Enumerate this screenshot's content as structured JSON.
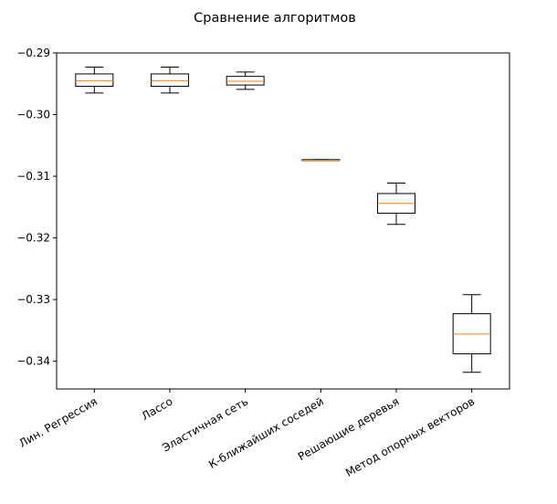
{
  "chart_data": {
    "type": "boxplot",
    "title": "Сравнение алгоритмов",
    "xlabel": "",
    "ylabel": "",
    "ylim": [
      -0.3445,
      -0.29
    ],
    "yticks": [
      -0.29,
      -0.3,
      -0.31,
      -0.32,
      -0.33,
      -0.34
    ],
    "ytick_labels": [
      "−0.29",
      "−0.30",
      "−0.31",
      "−0.32",
      "−0.33",
      "−0.34"
    ],
    "grid": false,
    "colors": {
      "box": "#000000",
      "median": "#ff7f0e"
    },
    "categories": [
      "Лин. Регрессия",
      "Лассо",
      "Эластичная сеть",
      "К-ближайших соседей",
      "Решающие деревья",
      "Метод опорных векторов"
    ],
    "boxes": [
      {
        "whisker_low": -0.2965,
        "q1": -0.2954,
        "median": -0.2945,
        "q3": -0.2934,
        "whisker_high": -0.2923
      },
      {
        "whisker_low": -0.2965,
        "q1": -0.2954,
        "median": -0.2945,
        "q3": -0.2934,
        "whisker_high": -0.2923
      },
      {
        "whisker_low": -0.2959,
        "q1": -0.2952,
        "median": -0.2946,
        "q3": -0.2938,
        "whisker_high": -0.2931
      },
      {
        "whisker_low": -0.3074,
        "q1": -0.3074,
        "median": -0.3074,
        "q3": -0.3073,
        "whisker_high": -0.3073
      },
      {
        "whisker_low": -0.3178,
        "q1": -0.316,
        "median": -0.3144,
        "q3": -0.3128,
        "whisker_high": -0.3111
      },
      {
        "whisker_low": -0.3418,
        "q1": -0.3388,
        "median": -0.3356,
        "q3": -0.3323,
        "whisker_high": -0.3292
      }
    ]
  }
}
